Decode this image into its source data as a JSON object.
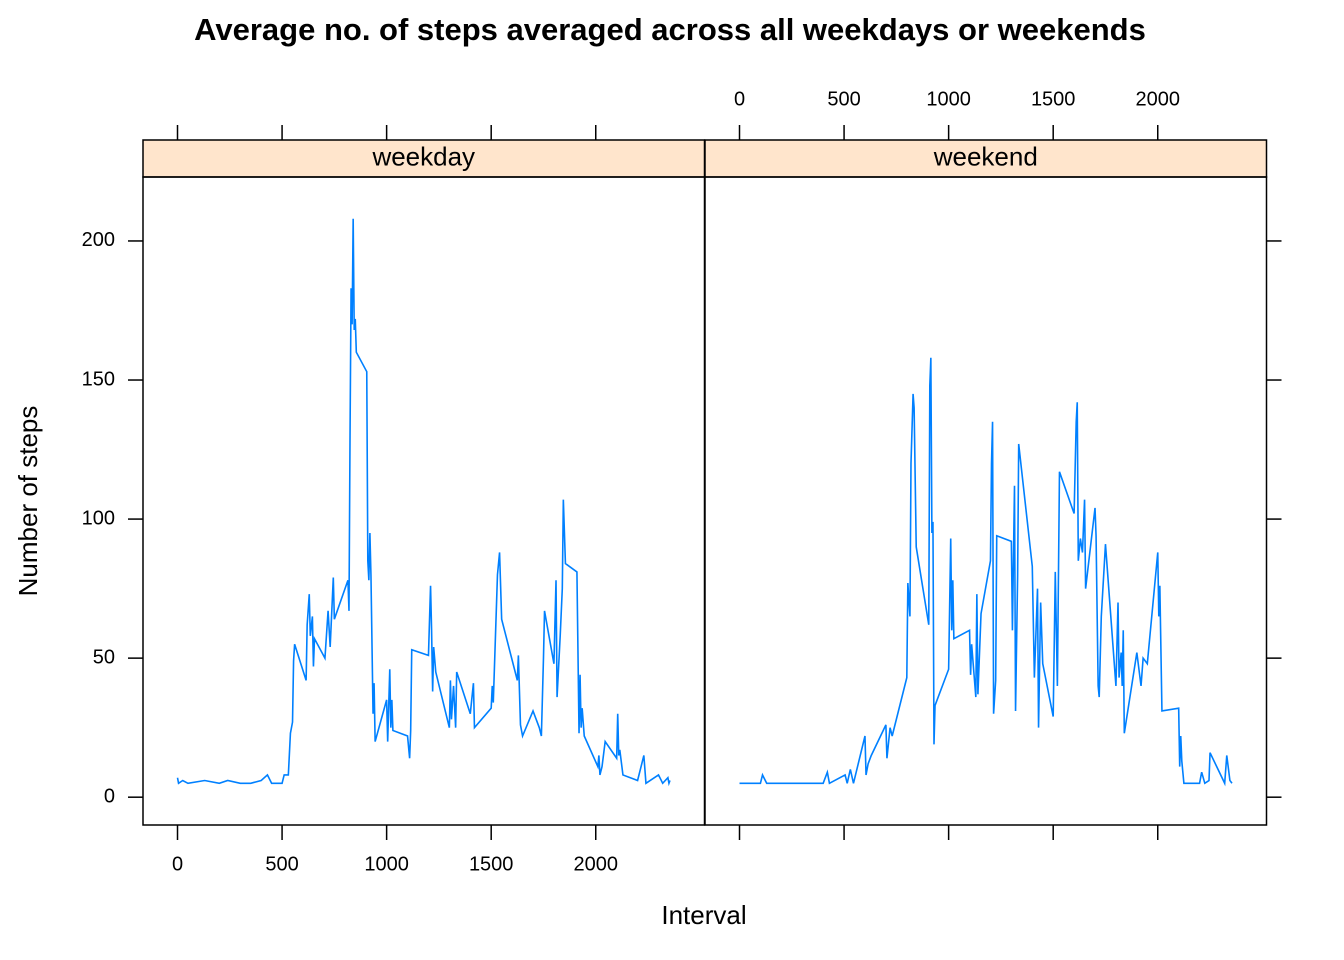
{
  "chart_data": {
    "type": "line",
    "title": "Average no. of steps averaged across all weekdays or weekends",
    "xlabel": "Interval",
    "ylabel": "Number of steps",
    "color": "#0080ff",
    "strip_color": "#ffe5cc",
    "xlim": [
      -165,
      2520
    ],
    "ylim": [
      -10,
      223
    ],
    "xticks": [
      0,
      500,
      1000,
      1500,
      2000
    ],
    "yticks": [
      0,
      50,
      100,
      150,
      200
    ],
    "panels": [
      {
        "strip": "weekday",
        "x": [
          0,
          5,
          25,
          50,
          130,
          200,
          240,
          300,
          350,
          400,
          430,
          450,
          500,
          510,
          530,
          540,
          550,
          555,
          560,
          615,
          620,
          630,
          635,
          645,
          650,
          655,
          705,
          720,
          730,
          745,
          750,
          815,
          820,
          825,
          830,
          835,
          840,
          845,
          850,
          855,
          905,
          910,
          915,
          920,
          925,
          935,
          940,
          945,
          1000,
          1005,
          1015,
          1020,
          1025,
          1030,
          1100,
          1110,
          1115,
          1120,
          1200,
          1210,
          1215,
          1220,
          1225,
          1235,
          1300,
          1305,
          1310,
          1320,
          1330,
          1335,
          1400,
          1415,
          1420,
          1500,
          1505,
          1510,
          1530,
          1540,
          1550,
          1625,
          1630,
          1640,
          1650,
          1700,
          1730,
          1740,
          1750,
          1755,
          1800,
          1810,
          1815,
          1830,
          1840,
          1845,
          1855,
          1910,
          1920,
          1925,
          1930,
          1935,
          1945,
          2010,
          2015,
          2020,
          2030,
          2045,
          2100,
          2105,
          2110,
          2115,
          2130,
          2200,
          2230,
          2240,
          2300,
          2320,
          2345,
          2350,
          2355
        ],
        "values": [
          7,
          5,
          6,
          5,
          6,
          5,
          6,
          5,
          5,
          6,
          8,
          5,
          5,
          8,
          8,
          23,
          27,
          49,
          55,
          42,
          62,
          73,
          58,
          65,
          47,
          57,
          50,
          67,
          54,
          79,
          64,
          78,
          67,
          130,
          183,
          170,
          208,
          168,
          172,
          160,
          153,
          85,
          78,
          95,
          80,
          30,
          41,
          20,
          35,
          20,
          46,
          25,
          35,
          24,
          22,
          14,
          24,
          53,
          51,
          76,
          60,
          38,
          54,
          45,
          25,
          42,
          28,
          40,
          25,
          45,
          30,
          41,
          25,
          32,
          40,
          34,
          80,
          88,
          64,
          42,
          51,
          26,
          22,
          31,
          25,
          22,
          50,
          67,
          48,
          78,
          36,
          58,
          75,
          107,
          84,
          81,
          23,
          44,
          25,
          32,
          22,
          11,
          15,
          8,
          11,
          20,
          14,
          30,
          15,
          17,
          8,
          6,
          15,
          5,
          8,
          5,
          7,
          5,
          6
        ]
      },
      {
        "strip": "weekend",
        "x": [
          0,
          100,
          110,
          130,
          200,
          205,
          300,
          400,
          420,
          430,
          505,
          515,
          530,
          545,
          600,
          605,
          615,
          630,
          700,
          705,
          720,
          730,
          800,
          805,
          815,
          820,
          830,
          835,
          845,
          905,
          910,
          915,
          920,
          925,
          930,
          935,
          1000,
          1010,
          1015,
          1020,
          1025,
          1100,
          1105,
          1110,
          1130,
          1135,
          1140,
          1155,
          1200,
          1205,
          1210,
          1215,
          1225,
          1230,
          1300,
          1305,
          1315,
          1320,
          1330,
          1335,
          1400,
          1410,
          1425,
          1430,
          1440,
          1450,
          1500,
          1510,
          1520,
          1530,
          1600,
          1610,
          1615,
          1620,
          1630,
          1640,
          1650,
          1655,
          1700,
          1705,
          1715,
          1720,
          1730,
          1750,
          1800,
          1810,
          1815,
          1825,
          1830,
          1835,
          1840,
          1900,
          1920,
          1930,
          1950,
          2000,
          2005,
          2010,
          2020,
          2100,
          2105,
          2110,
          2115,
          2125,
          2200,
          2210,
          2225,
          2245,
          2250,
          2320,
          2330,
          2345,
          2355
        ],
        "values": [
          5,
          5,
          8,
          5,
          5,
          5,
          5,
          5,
          9,
          5,
          8,
          5,
          10,
          5,
          22,
          8,
          12,
          15,
          26,
          14,
          25,
          22,
          43,
          77,
          65,
          120,
          145,
          140,
          90,
          62,
          148,
          158,
          95,
          99,
          19,
          33,
          46,
          93,
          60,
          78,
          57,
          60,
          44,
          55,
          36,
          73,
          37,
          66,
          85,
          120,
          135,
          30,
          42,
          94,
          92,
          60,
          112,
          31,
          80,
          127,
          83,
          43,
          75,
          25,
          70,
          48,
          29,
          81,
          40,
          117,
          102,
          135,
          142,
          85,
          93,
          88,
          107,
          75,
          104,
          94,
          40,
          36,
          65,
          91,
          40,
          70,
          43,
          52,
          40,
          60,
          23,
          52,
          40,
          50,
          48,
          88,
          65,
          76,
          31,
          32,
          11,
          22,
          13,
          5,
          5,
          9,
          5,
          6,
          16,
          5,
          15,
          6,
          5
        ]
      }
    ]
  }
}
